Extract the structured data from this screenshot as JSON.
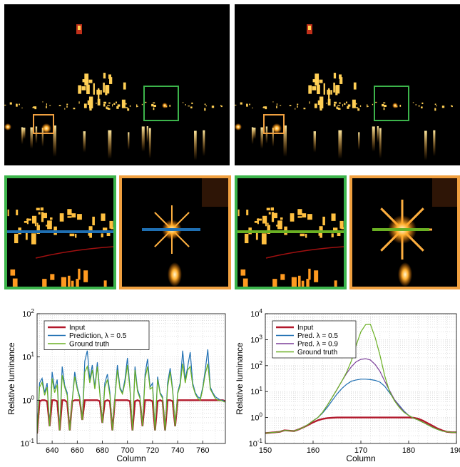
{
  "colors": {
    "green": "#3cb44b",
    "orange": "#f0a040",
    "input": "#b2182b",
    "prediction": "#1f6fb2",
    "purple": "#7b3f99",
    "ground_truth": "#6ab023",
    "background": "#ffffff"
  },
  "panels": {
    "left_scene": {
      "line_color_name": "prediction"
    },
    "right_scene": {
      "line_color_name": "ground_truth"
    }
  },
  "chart_data": [
    {
      "type": "line",
      "xlabel": "Column",
      "ylabel": "Relative luminance",
      "y_scale": "log",
      "xlim": [
        628,
        778
      ],
      "ylim": [
        0.1,
        100
      ],
      "x_ticks": [
        "640",
        "660",
        "680",
        "700",
        "720",
        "740",
        "760"
      ],
      "y_ticks": [
        "10-1",
        "100",
        "101",
        "102"
      ],
      "grid": true,
      "legend_position": "top-left",
      "legend": [
        "Input",
        "Prediction, λ = 0.5",
        "Ground truth"
      ],
      "x": [
        628,
        630,
        632,
        634,
        636,
        638,
        640,
        642,
        644,
        646,
        648,
        650,
        652,
        654,
        656,
        658,
        660,
        662,
        664,
        666,
        668,
        670,
        672,
        674,
        676,
        678,
        680,
        682,
        684,
        686,
        688,
        690,
        692,
        694,
        696,
        698,
        700,
        702,
        704,
        706,
        708,
        710,
        712,
        714,
        716,
        718,
        720,
        722,
        724,
        726,
        728,
        730,
        732,
        734,
        736,
        738,
        740,
        742,
        744,
        746,
        748,
        750,
        752,
        754,
        756,
        758,
        760,
        762,
        764,
        766,
        768,
        770,
        772,
        774,
        776,
        778
      ],
      "series": [
        {
          "name": "Input",
          "values": [
            0.17,
            0.95,
            1.0,
            1.0,
            0.95,
            0.25,
            1.0,
            1.0,
            0.95,
            0.2,
            1.0,
            1.0,
            0.9,
            0.2,
            0.95,
            1.0,
            1.0,
            1.0,
            0.35,
            1.0,
            1.0,
            1.0,
            1.0,
            1.0,
            1.0,
            0.95,
            0.3,
            0.95,
            1.0,
            0.95,
            0.2,
            1.0,
            1.0,
            1.0,
            1.0,
            1.0,
            1.0,
            0.95,
            0.2,
            0.95,
            1.0,
            0.95,
            0.25,
            1.0,
            1.0,
            1.0,
            0.95,
            0.2,
            0.95,
            1.0,
            0.95,
            0.2,
            1.0,
            1.0,
            0.95,
            0.25,
            1.0,
            1.0,
            1.0,
            1.0,
            1.0,
            1.0,
            1.0,
            1.0,
            1.0,
            1.0,
            1.0,
            1.0,
            1.0,
            1.0,
            1.0,
            1.0,
            1.0,
            1.0,
            1.0,
            0.95
          ]
        },
        {
          "name": "Prediction, λ = 0.5",
          "values": [
            0.17,
            2.5,
            3.2,
            1.5,
            2.5,
            0.25,
            4.5,
            1.8,
            3.0,
            0.2,
            6.0,
            2.2,
            1.5,
            0.2,
            1.0,
            4.5,
            2.0,
            1.2,
            0.35,
            8.0,
            14.0,
            3.0,
            6.5,
            2.0,
            7.5,
            1.5,
            0.3,
            2.5,
            4.0,
            1.5,
            0.2,
            1.2,
            6.5,
            2.0,
            1.5,
            3.0,
            9.5,
            2.0,
            0.2,
            6.0,
            1.8,
            1.2,
            0.25,
            4.0,
            9.0,
            2.0,
            2.5,
            0.2,
            3.5,
            1.5,
            1.2,
            0.2,
            2.5,
            5.5,
            1.8,
            0.25,
            1.5,
            2.5,
            14.0,
            3.0,
            6.0,
            13.0,
            2.5,
            1.5,
            1.2,
            1.1,
            2.0,
            5.0,
            15.0,
            2.0,
            1.5,
            1.2,
            1.1,
            1.0,
            1.0,
            0.9
          ]
        },
        {
          "name": "Ground truth",
          "values": [
            0.17,
            2.0,
            2.6,
            1.3,
            2.0,
            0.25,
            3.2,
            1.5,
            2.3,
            0.2,
            3.8,
            2.0,
            1.3,
            0.2,
            1.0,
            3.5,
            1.8,
            1.1,
            0.35,
            4.5,
            6.0,
            2.5,
            5.0,
            1.8,
            6.0,
            1.4,
            0.3,
            2.0,
            3.0,
            1.3,
            0.2,
            1.1,
            5.0,
            1.8,
            1.4,
            2.5,
            6.5,
            1.8,
            0.2,
            5.0,
            1.6,
            1.1,
            0.25,
            3.2,
            6.0,
            1.8,
            2.0,
            0.2,
            3.0,
            1.4,
            1.1,
            0.2,
            2.0,
            4.5,
            1.6,
            0.25,
            1.4,
            2.2,
            7.0,
            2.5,
            5.0,
            6.0,
            2.2,
            1.4,
            1.1,
            1.0,
            1.8,
            4.0,
            7.0,
            1.8,
            1.4,
            1.1,
            1.0,
            1.0,
            0.95,
            0.9
          ]
        }
      ]
    },
    {
      "type": "line",
      "xlabel": "Column",
      "ylabel": "Relative luminance",
      "y_scale": "log",
      "xlim": [
        150,
        190
      ],
      "ylim": [
        0.1,
        10000
      ],
      "x_ticks": [
        "150",
        "160",
        "170",
        "180",
        "190"
      ],
      "y_ticks": [
        "10-1",
        "100",
        "101",
        "102",
        "103",
        "104"
      ],
      "grid": true,
      "legend_position": "top-left",
      "legend": [
        "Input",
        "Pred. λ = 0.5",
        "Pred. λ = 0.9",
        "Ground truth"
      ],
      "x": [
        150,
        151,
        152,
        153,
        154,
        155,
        156,
        157,
        158,
        159,
        160,
        161,
        162,
        163,
        164,
        165,
        166,
        167,
        168,
        169,
        170,
        171,
        172,
        173,
        174,
        175,
        176,
        177,
        178,
        179,
        180,
        181,
        182,
        183,
        184,
        185,
        186,
        187,
        188,
        189,
        190
      ],
      "series": [
        {
          "name": "Input",
          "values": [
            0.25,
            0.26,
            0.27,
            0.28,
            0.32,
            0.31,
            0.3,
            0.35,
            0.42,
            0.52,
            0.65,
            0.78,
            0.88,
            0.95,
            0.98,
            1.0,
            1.0,
            1.0,
            1.0,
            1.0,
            1.0,
            1.0,
            1.0,
            1.0,
            1.0,
            1.0,
            1.0,
            1.0,
            1.0,
            1.0,
            1.0,
            0.98,
            0.9,
            0.75,
            0.6,
            0.48,
            0.38,
            0.32,
            0.28,
            0.27,
            0.27
          ]
        },
        {
          "name": "Pred. λ = 0.5",
          "values": [
            0.25,
            0.26,
            0.27,
            0.28,
            0.32,
            0.31,
            0.3,
            0.35,
            0.42,
            0.55,
            0.75,
            1.0,
            1.5,
            2.5,
            4.5,
            8.0,
            13.0,
            19.0,
            25.0,
            28.0,
            30.0,
            30.0,
            29.0,
            27.0,
            23.0,
            16.0,
            9.0,
            5.0,
            3.0,
            1.8,
            1.2,
            0.95,
            0.8,
            0.65,
            0.52,
            0.42,
            0.35,
            0.3,
            0.28,
            0.27,
            0.27
          ]
        },
        {
          "name": "Pred. λ = 0.9",
          "values": [
            0.25,
            0.26,
            0.27,
            0.28,
            0.32,
            0.31,
            0.3,
            0.35,
            0.42,
            0.55,
            0.75,
            1.0,
            1.6,
            3.0,
            6.0,
            12.0,
            25.0,
            50.0,
            90.0,
            140.0,
            175.0,
            185.0,
            165.0,
            110.0,
            60.0,
            25.0,
            11.0,
            5.0,
            2.8,
            1.7,
            1.2,
            0.95,
            0.8,
            0.65,
            0.52,
            0.42,
            0.35,
            0.3,
            0.28,
            0.27,
            0.27
          ]
        },
        {
          "name": "Ground truth",
          "values": [
            0.25,
            0.26,
            0.27,
            0.28,
            0.32,
            0.31,
            0.3,
            0.35,
            0.42,
            0.55,
            0.75,
            1.0,
            1.6,
            3.0,
            6.0,
            12.0,
            25.0,
            55.0,
            150.0,
            600.0,
            2000.0,
            3800.0,
            3900.0,
            1200.0,
            250.0,
            40.0,
            10.0,
            4.5,
            2.5,
            1.6,
            1.2,
            0.95,
            0.8,
            0.65,
            0.52,
            0.42,
            0.35,
            0.3,
            0.28,
            0.27,
            0.27
          ]
        }
      ]
    }
  ]
}
